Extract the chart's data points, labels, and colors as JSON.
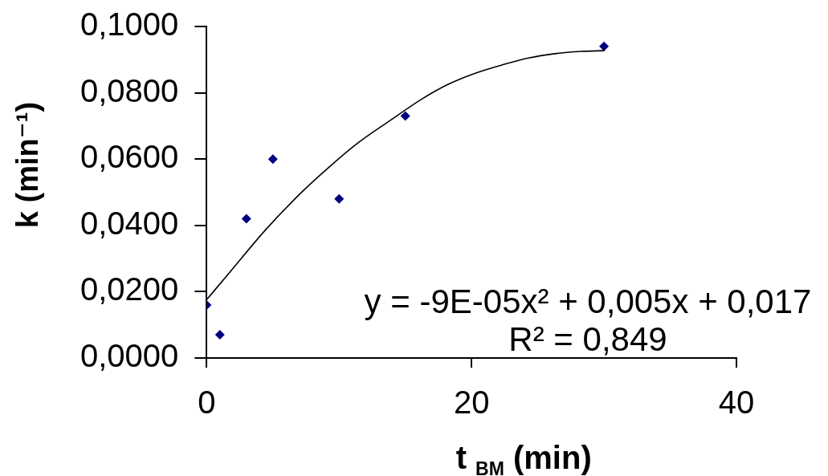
{
  "chart_data": {
    "type": "scatter",
    "xlabel": "t $_{BM}$ (min)",
    "ylabel": "k (min⁻¹)",
    "xlim": [
      0,
      40
    ],
    "xticks": [
      0,
      20,
      40
    ],
    "ylim": [
      0,
      0.1
    ],
    "yticks": [
      {
        "value": 0,
        "label": "0,0000"
      },
      {
        "value": 0.02,
        "label": "0,0200"
      },
      {
        "value": 0.04,
        "label": "0,0400"
      },
      {
        "value": 0.06,
        "label": "0,0600"
      },
      {
        "value": 0.08,
        "label": "0,0800"
      },
      {
        "value": 0.1,
        "label": "0,1000"
      }
    ],
    "series": [
      {
        "color": "#000080",
        "marker": "diamond",
        "x": [
          0,
          1,
          3,
          5,
          10,
          15,
          30
        ],
        "values": [
          0.016,
          0.007,
          0.042,
          0.06,
          0.048,
          0.073,
          0.094
        ]
      },
      {
        "type": "line",
        "color": "#000000",
        "marker": "none",
        "x": [
          0,
          1.6,
          4.5,
          7.3,
          9.3,
          11.3,
          13.8,
          16.2,
          18.2,
          20.2,
          22.3,
          24.3,
          26.3,
          28.3,
          30
        ],
        "values": [
          0.0176,
          0.0252,
          0.0389,
          0.0505,
          0.0578,
          0.0645,
          0.0715,
          0.078,
          0.0825,
          0.0858,
          0.0884,
          0.0905,
          0.0918,
          0.0925,
          0.0927
        ]
      }
    ],
    "annotations": [
      "y = -9E-05x² + 0,005x + 0,017",
      "R² = 0,849"
    ]
  }
}
